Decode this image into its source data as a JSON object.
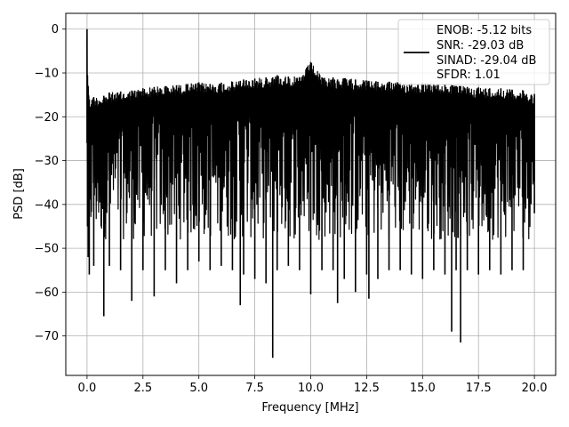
{
  "chart_data": {
    "type": "line",
    "xlabel": "Frequency [MHz]",
    "ylabel": "PSD [dB]",
    "xlim": [
      -0.95,
      20.95
    ],
    "ylim": [
      -79,
      3.6
    ],
    "xticks": [
      0.0,
      2.5,
      5.0,
      7.5,
      10.0,
      12.5,
      15.0,
      17.5,
      20.0
    ],
    "xtick_labels": [
      "0.0",
      "2.5",
      "5.0",
      "7.5",
      "10.0",
      "12.5",
      "15.0",
      "17.5",
      "20.0"
    ],
    "yticks": [
      0,
      -10,
      -20,
      -30,
      -40,
      -50,
      -60,
      -70
    ],
    "ytick_labels": [
      "0",
      "−10",
      "−20",
      "−30",
      "−40",
      "−50",
      "−60",
      "−70"
    ],
    "grid": true,
    "legend_position": "top-right",
    "legend": {
      "lines": [
        "ENOB: -5.12 bits",
        "SNR: -29.03 dB",
        "SINAD: -29.04 dB",
        "SFDR: 1.01"
      ]
    },
    "series": [
      {
        "color": "#000000",
        "x": [
          0.0,
          0.02,
          0.05,
          0.1,
          0.3,
          0.75,
          1.0,
          1.5,
          2.0,
          2.5,
          3.0,
          3.5,
          4.0,
          4.5,
          5.0,
          5.5,
          6.0,
          6.5,
          6.85,
          7.0,
          7.5,
          8.0,
          8.3,
          8.5,
          9.0,
          9.5,
          10.0,
          10.5,
          11.0,
          11.2,
          11.5,
          12.0,
          12.5,
          12.6,
          13.0,
          13.5,
          14.0,
          14.5,
          15.0,
          15.5,
          16.0,
          16.3,
          16.5,
          16.7,
          17.0,
          17.5,
          18.0,
          18.5,
          19.0,
          19.5,
          20.0
        ],
        "y_max": [
          0.0,
          -10.5,
          -13.0,
          -16.0,
          -15.5,
          -15.2,
          -14.5,
          -14.3,
          -14.0,
          -13.5,
          -13.2,
          -13.0,
          -12.8,
          -12.5,
          -12.2,
          -12.5,
          -12.2,
          -12.0,
          -11.8,
          -11.5,
          -11.3,
          -11.0,
          -11.0,
          -10.5,
          -10.8,
          -11.0,
          -7.5,
          -11.0,
          -11.0,
          -11.5,
          -11.2,
          -11.5,
          -11.7,
          -11.8,
          -12.0,
          -12.0,
          -12.2,
          -12.3,
          -12.3,
          -12.5,
          -12.5,
          -12.8,
          -13.0,
          -13.0,
          -13.2,
          -13.3,
          -13.5,
          -13.5,
          -13.8,
          -14.0,
          -14.8
        ],
        "y_min": [
          -26.0,
          -45.0,
          -52.0,
          -56.0,
          -54.0,
          -65.5,
          -54.0,
          -55.0,
          -62.0,
          -55.0,
          -61.0,
          -55.0,
          -58.0,
          -55.0,
          -53.0,
          -55.0,
          -54.0,
          -55.0,
          -63.0,
          -56.0,
          -57.0,
          -58.0,
          -75.0,
          -55.0,
          -54.0,
          -55.0,
          -60.5,
          -55.0,
          -55.0,
          -62.5,
          -57.0,
          -60.0,
          -56.0,
          -61.5,
          -57.0,
          -55.0,
          -55.0,
          -56.0,
          -57.0,
          -55.0,
          -56.0,
          -69.0,
          -55.0,
          -71.5,
          -55.0,
          -56.0,
          -55.0,
          -56.0,
          -55.0,
          -55.0,
          -42.0
        ]
      }
    ]
  }
}
